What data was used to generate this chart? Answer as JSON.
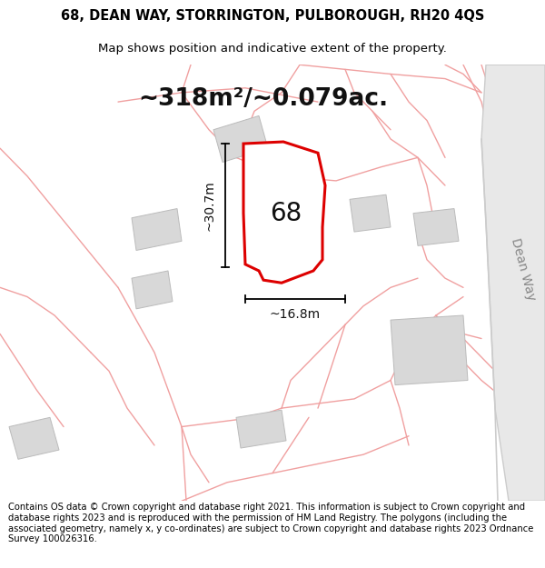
{
  "title_line1": "68, DEAN WAY, STORRINGTON, PULBOROUGH, RH20 4QS",
  "title_line2": "Map shows position and indicative extent of the property.",
  "area_text": "~318m²/~0.079ac.",
  "label_68": "68",
  "dim_height": "~30.7m",
  "dim_width": "~16.8m",
  "road_label": "Dean Way",
  "footer_text": "Contains OS data © Crown copyright and database right 2021. This information is subject to Crown copyright and database rights 2023 and is reproduced with the permission of HM Land Registry. The polygons (including the associated geometry, namely x, y co-ordinates) are subject to Crown copyright and database rights 2023 Ordnance Survey 100026316.",
  "bg_color": "#ffffff",
  "map_bg": "#ffffff",
  "plot_fill": "#ffffff",
  "plot_edge": "#dd0000",
  "bldg_fill": "#d8d8d8",
  "bldg_edge": "#bbbbbb",
  "boundary_color": "#f0a0a0",
  "road_stripe_color": "#e0e0e0",
  "road_text_color": "#888888",
  "title_fontsize": 10.5,
  "subtitle_fontsize": 9.5,
  "area_fontsize": 19,
  "label_fontsize": 20,
  "dim_fontsize": 10,
  "road_fontsize": 10,
  "footer_fontsize": 7.2
}
